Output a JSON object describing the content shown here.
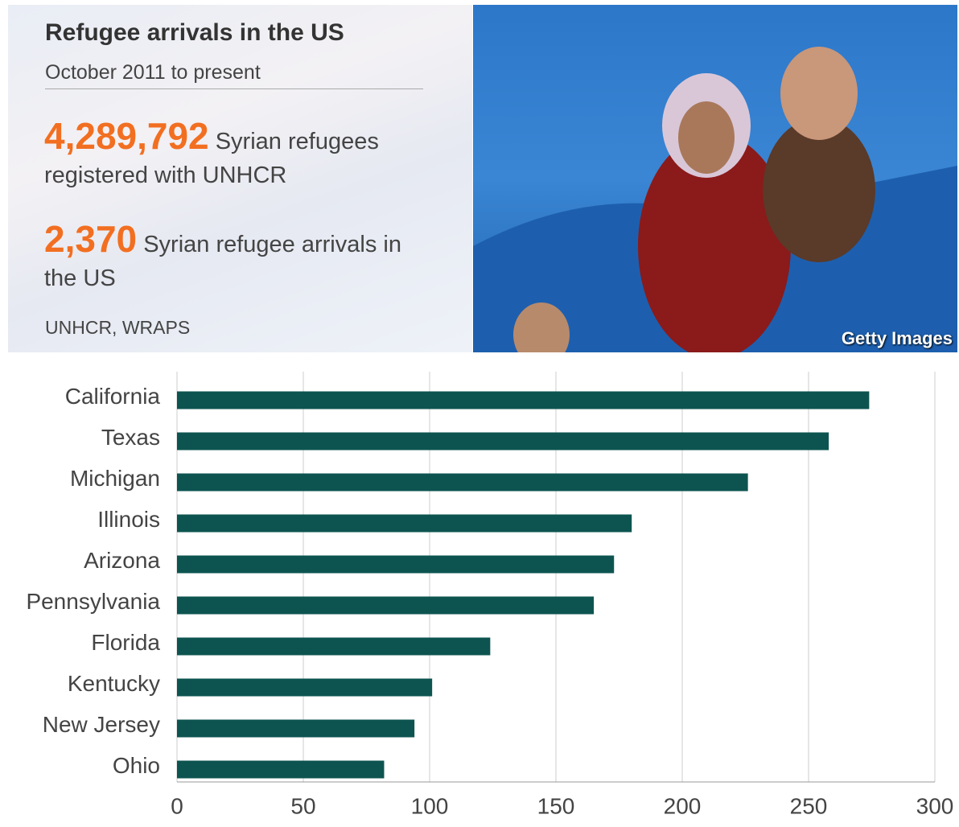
{
  "header": {
    "title": "Refugee arrivals in the US",
    "subtitle": "October 2011 to present",
    "stats": [
      {
        "number": "4,289,792",
        "text": "Syrian refugees registered with UNHCR"
      },
      {
        "number": "2,370",
        "text": "Syrian refugee arrivals in the US"
      }
    ],
    "source": "UNHCR, WRAPS",
    "credit": "Getty Images"
  },
  "chart_data": {
    "type": "bar",
    "orientation": "horizontal",
    "categories": [
      "California",
      "Texas",
      "Michigan",
      "Illinois",
      "Arizona",
      "Pennsylvania",
      "Florida",
      "Kentucky",
      "New Jersey",
      "Ohio"
    ],
    "values": [
      274,
      258,
      226,
      180,
      173,
      165,
      124,
      101,
      94,
      82
    ],
    "color": "#0d5450",
    "xlim": [
      0,
      300
    ],
    "xticks": [
      0,
      50,
      100,
      150,
      200,
      250,
      300
    ],
    "grid": true
  }
}
